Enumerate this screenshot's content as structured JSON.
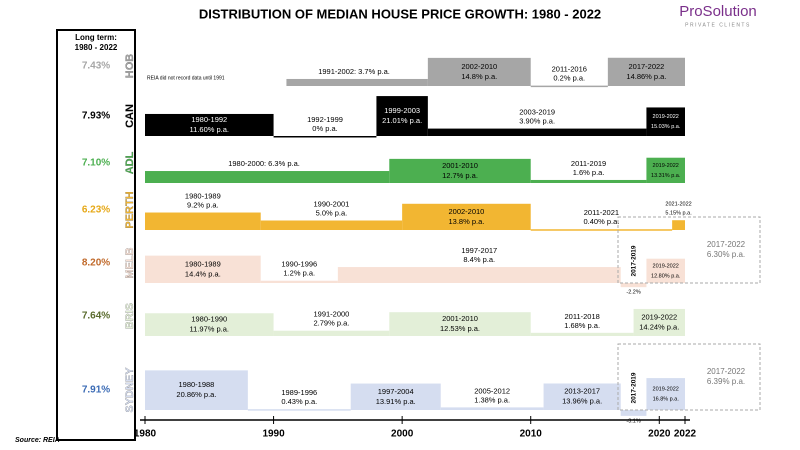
{
  "chart_data": {
    "type": "timeline",
    "title": "DISTRIBUTION OF MEDIAN HOUSE PRICE GROWTH: 1980 - 2022",
    "logo": "ProSolution",
    "logo_subtitle": "PRIVATE CLIENTS",
    "source": "Source: REIA",
    "long_term_header": [
      "Long term:",
      "1980 - 2022"
    ],
    "xlim": [
      1980,
      2022
    ],
    "xticks": [
      1980,
      1990,
      2000,
      2010,
      2020,
      2022
    ],
    "series": [
      {
        "name": "HOB",
        "color": "#a6a6a6",
        "text_color": "#000000",
        "long_term": {
          "value": 7.43,
          "label": "7.43%"
        },
        "note": "REIA did not record data until 1991",
        "segments": [
          {
            "period": "1991-2002:",
            "label": "3.7% p.a.",
            "value": 3.7,
            "start": 1991,
            "end": 2002,
            "inline": true
          },
          {
            "period": "2002-2010",
            "label": "14.8% p.a.",
            "value": 14.8,
            "start": 2002,
            "end": 2010
          },
          {
            "period": "2011-2016",
            "label": "0.2% p.a.",
            "value": 0.2,
            "start": 2010,
            "end": 2016
          },
          {
            "period": "2017-2022",
            "label": "14.86% p.a.",
            "value": 14.86,
            "start": 2016,
            "end": 2022
          }
        ]
      },
      {
        "name": "CAN",
        "color": "#000000",
        "text_color": "#ffffff",
        "long_term": {
          "value": 7.93,
          "label": "7.93%"
        },
        "segments": [
          {
            "period": "1980-1992",
            "label": "11.60% p.a.",
            "value": 11.6,
            "start": 1980,
            "end": 1990
          },
          {
            "period": "1992-1999",
            "label": "0% p.a.",
            "value": 0,
            "start": 1990,
            "end": 1998
          },
          {
            "period": "1999-2003",
            "label": "21.01% p.a.",
            "value": 21.01,
            "start": 1998,
            "end": 2002
          },
          {
            "period": "2003-2019",
            "label": "3.90% p.a.",
            "value": 3.9,
            "start": 2002,
            "end": 2019
          },
          {
            "period": "2019-2022",
            "label": "15.03% p.a.",
            "value": 15.03,
            "start": 2019,
            "end": 2022
          }
        ]
      },
      {
        "name": "ADL",
        "color": "#4caf50",
        "text_color": "#000000",
        "long_term": {
          "value": 7.1,
          "label": "7.10%"
        },
        "segments": [
          {
            "period": "1980-2000:",
            "label": "6.3% p.a.",
            "value": 6.3,
            "start": 1980,
            "end": 1999,
            "inline": true
          },
          {
            "period": "2001-2010",
            "label": "12.7% p.a.",
            "value": 12.7,
            "start": 1999,
            "end": 2010
          },
          {
            "period": "2011-2019",
            "label": "1.6% p.a.",
            "value": 1.6,
            "start": 2010,
            "end": 2019
          },
          {
            "period": "2019-2022",
            "label": "13.31% p.a.",
            "value": 13.31,
            "start": 2019,
            "end": 2022
          }
        ]
      },
      {
        "name": "PERTH",
        "color": "#f2b632",
        "text_color": "#000000",
        "long_term": {
          "value": 6.23,
          "label": "6.23%"
        },
        "segments": [
          {
            "period": "1980-1989",
            "label": "9.2% p.a.",
            "value": 9.2,
            "start": 1980,
            "end": 1989
          },
          {
            "period": "1990-2001",
            "label": "5.0% p.a.",
            "value": 5.0,
            "start": 1989,
            "end": 2000
          },
          {
            "period": "2002-2010",
            "label": "13.8% p.a.",
            "value": 13.8,
            "start": 2000,
            "end": 2010
          },
          {
            "period": "2011-2021",
            "label": "0.40% p.a.",
            "value": 0.4,
            "start": 2010,
            "end": 2021
          },
          {
            "period": "2021-2022",
            "label": "5.15% p.a.",
            "value": 5.15,
            "start": 2021,
            "end": 2022
          }
        ]
      },
      {
        "name": "MELB",
        "color": "#f8e1d6",
        "text_color": "#000000",
        "long_term": {
          "value": 8.2,
          "label": "8.20%"
        },
        "segments": [
          {
            "period": "1980-1989",
            "label": "14.4% p.a.",
            "value": 14.4,
            "start": 1980,
            "end": 1989
          },
          {
            "period": "1990-1996",
            "label": "1.2% p.a.",
            "value": 1.2,
            "start": 1989,
            "end": 1995
          },
          {
            "period": "1997-2017",
            "label": "8.4% p.a.",
            "value": 8.4,
            "start": 1995,
            "end": 2017
          },
          {
            "period": "2017-2019",
            "label": "-2.2%",
            "value": -2.2,
            "start": 2017,
            "end": 2019
          },
          {
            "period": "2019-2022",
            "label": "12.80% p.a.",
            "value": 12.8,
            "start": 2019,
            "end": 2022
          }
        ],
        "overall": {
          "period": "2017-2022",
          "label": "6.30% p.a.",
          "value": 6.3
        }
      },
      {
        "name": "BRIS",
        "color": "#e3efd8",
        "text_color": "#000000",
        "long_term": {
          "value": 7.64,
          "label": "7.64%"
        },
        "segments": [
          {
            "period": "1980-1990",
            "label": "11.97% p.a.",
            "value": 11.97,
            "start": 1980,
            "end": 1990
          },
          {
            "period": "1991-2000",
            "label": "2.79% p.a.",
            "value": 2.79,
            "start": 1990,
            "end": 1999
          },
          {
            "period": "2001-2010",
            "label": "12.53% p.a.",
            "value": 12.53,
            "start": 1999,
            "end": 2010
          },
          {
            "period": "2011-2018",
            "label": "1.68% p.a.",
            "value": 1.68,
            "start": 2010,
            "end": 2018
          },
          {
            "period": "2019-2022",
            "label": "14.24% p.a.",
            "value": 14.24,
            "start": 2018,
            "end": 2022
          }
        ]
      },
      {
        "name": "SYDNEY",
        "color": "#d5ddf0",
        "text_color": "#000000",
        "long_term": {
          "value": 7.91,
          "label": "7.91%"
        },
        "segments": [
          {
            "period": "1980-1988",
            "label": "20.86% p.a.",
            "value": 20.86,
            "start": 1980,
            "end": 1988
          },
          {
            "period": "1989-1996",
            "label": "0.43% p.a.",
            "value": 0.43,
            "start": 1988,
            "end": 1996
          },
          {
            "period": "1997-2004",
            "label": "13.91% p.a.",
            "value": 13.91,
            "start": 1996,
            "end": 2003
          },
          {
            "period": "2005-2012",
            "label": "1.38% p.a.",
            "value": 1.38,
            "start": 2003,
            "end": 2011
          },
          {
            "period": "2013-2017",
            "label": "13.96% p.a.",
            "value": 13.96,
            "start": 2011,
            "end": 2017
          },
          {
            "period": "2017-2019",
            "label": "-3.1%",
            "value": -3.1,
            "start": 2017,
            "end": 2019
          },
          {
            "period": "2019-2022",
            "label": "16.8% p.a.",
            "value": 16.8,
            "start": 2019,
            "end": 2022
          }
        ],
        "overall": {
          "period": "2017-2022",
          "label": "6.39% p.a.",
          "value": 6.39
        }
      }
    ]
  }
}
